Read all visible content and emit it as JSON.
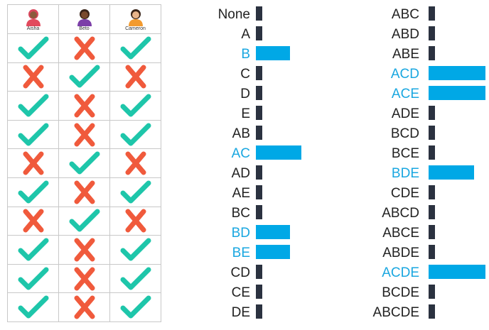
{
  "people": [
    {
      "name": "Aisha",
      "skin": "#8a5a3c",
      "hair": "#d9465c",
      "shirt": "#e24a5d"
    },
    {
      "name": "Beto",
      "skin": "#7a4a2c",
      "hair": "#3a2418",
      "shirt": "#7c3fa8"
    },
    {
      "name": "Cameron",
      "skin": "#e8b48a",
      "hair": "#3a2418",
      "shirt": "#f29a2e"
    }
  ],
  "grid": [
    [
      "check",
      "cross",
      "check"
    ],
    [
      "cross",
      "check",
      "cross"
    ],
    [
      "check",
      "cross",
      "check"
    ],
    [
      "check",
      "cross",
      "check"
    ],
    [
      "cross",
      "check",
      "cross"
    ],
    [
      "check",
      "cross",
      "check"
    ],
    [
      "cross",
      "check",
      "cross"
    ],
    [
      "check",
      "cross",
      "check"
    ],
    [
      "check",
      "cross",
      "check"
    ],
    [
      "check",
      "cross",
      "check"
    ]
  ],
  "colors": {
    "check": "#1ec6aa",
    "cross": "#f05a3c",
    "highlight": "#1aa7e0",
    "bar": "#00a8e6",
    "stub": "#2b3240",
    "label": "#222222"
  },
  "chart_data": {
    "type": "bar",
    "orientation": "horizontal",
    "xlim": [
      0,
      5
    ],
    "columns": [
      {
        "categories": [
          "None",
          "A",
          "B",
          "C",
          "D",
          "E",
          "AB",
          "AC",
          "AD",
          "AE",
          "BC",
          "BD",
          "BE",
          "CD",
          "CE",
          "DE"
        ],
        "values": [
          0,
          0,
          3,
          0,
          0,
          0,
          0,
          4,
          0,
          0,
          0,
          3,
          3,
          0,
          0,
          0
        ]
      },
      {
        "categories": [
          "ABC",
          "ABD",
          "ABE",
          "ACD",
          "ACE",
          "ADE",
          "BCD",
          "BCE",
          "BDE",
          "CDE",
          "ABCD",
          "ABCE",
          "ABDE",
          "ACDE",
          "BCDE",
          "ABCDE"
        ],
        "values": [
          0,
          0,
          0,
          5,
          5,
          0,
          0,
          0,
          4,
          0,
          0,
          0,
          0,
          5,
          0,
          0
        ]
      }
    ]
  }
}
